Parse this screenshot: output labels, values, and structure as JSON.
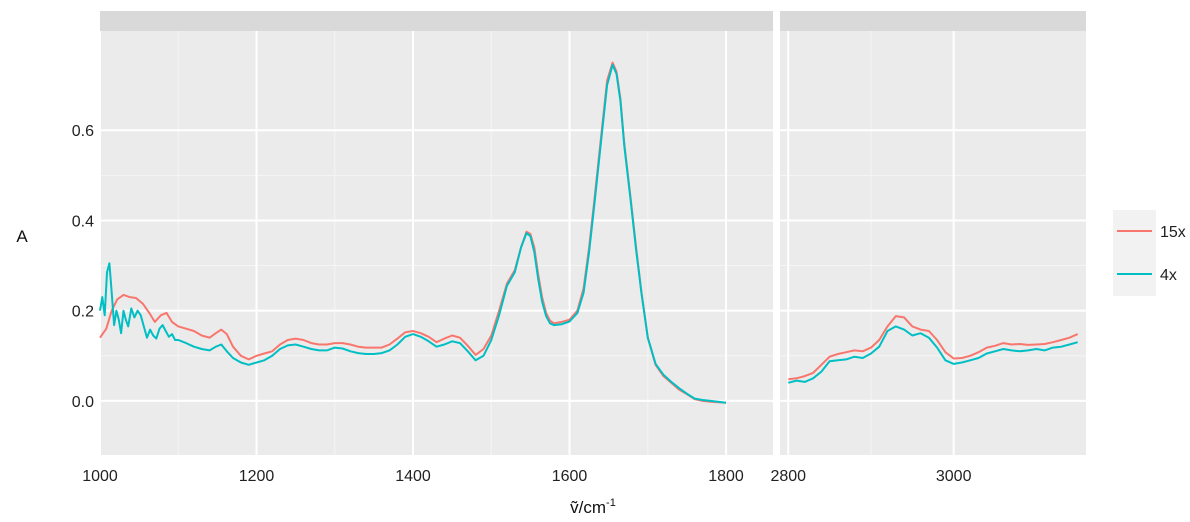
{
  "chart_data": {
    "type": "line",
    "xlabel": "ṽ/cm",
    "xlabel_sup": "-1",
    "ylabel": "A",
    "ylim": [
      -0.12,
      0.82
    ],
    "yticks": [
      0.0,
      0.2,
      0.4,
      0.6
    ],
    "ytick_labels": [
      "0.0",
      "0.2",
      "0.4",
      "0.6"
    ],
    "grid": true,
    "legend_position": "right",
    "panels": [
      {
        "xlim": [
          1000,
          1860
        ],
        "xticks": [
          1000,
          1200,
          1400,
          1600,
          1800
        ],
        "xtick_labels": [
          "1000",
          "1200",
          "1400",
          "1600",
          "1800"
        ]
      },
      {
        "xlim": [
          2790,
          3160
        ],
        "xticks": [
          2800,
          3000
        ],
        "xtick_labels": [
          "2800",
          "3000"
        ]
      }
    ],
    "series": [
      {
        "name": "15x",
        "color": "#F8766D",
        "panels": [
          [
            [
              1000,
              0.14
            ],
            [
              1008,
              0.16
            ],
            [
              1015,
              0.2
            ],
            [
              1022,
              0.225
            ],
            [
              1030,
              0.235
            ],
            [
              1038,
              0.23
            ],
            [
              1046,
              0.228
            ],
            [
              1055,
              0.215
            ],
            [
              1063,
              0.195
            ],
            [
              1070,
              0.175
            ],
            [
              1078,
              0.19
            ],
            [
              1085,
              0.195
            ],
            [
              1092,
              0.175
            ],
            [
              1100,
              0.165
            ],
            [
              1110,
              0.16
            ],
            [
              1120,
              0.155
            ],
            [
              1130,
              0.145
            ],
            [
              1140,
              0.14
            ],
            [
              1148,
              0.15
            ],
            [
              1155,
              0.158
            ],
            [
              1162,
              0.148
            ],
            [
              1170,
              0.12
            ],
            [
              1180,
              0.1
            ],
            [
              1190,
              0.092
            ],
            [
              1200,
              0.1
            ],
            [
              1210,
              0.105
            ],
            [
              1220,
              0.11
            ],
            [
              1230,
              0.125
            ],
            [
              1240,
              0.135
            ],
            [
              1250,
              0.138
            ],
            [
              1260,
              0.135
            ],
            [
              1270,
              0.128
            ],
            [
              1280,
              0.125
            ],
            [
              1290,
              0.125
            ],
            [
              1300,
              0.128
            ],
            [
              1310,
              0.128
            ],
            [
              1320,
              0.125
            ],
            [
              1330,
              0.12
            ],
            [
              1340,
              0.118
            ],
            [
              1350,
              0.118
            ],
            [
              1360,
              0.118
            ],
            [
              1370,
              0.125
            ],
            [
              1380,
              0.138
            ],
            [
              1390,
              0.152
            ],
            [
              1400,
              0.155
            ],
            [
              1410,
              0.15
            ],
            [
              1420,
              0.142
            ],
            [
              1430,
              0.13
            ],
            [
              1440,
              0.138
            ],
            [
              1450,
              0.145
            ],
            [
              1460,
              0.14
            ],
            [
              1470,
              0.122
            ],
            [
              1480,
              0.102
            ],
            [
              1490,
              0.115
            ],
            [
              1500,
              0.145
            ],
            [
              1510,
              0.2
            ],
            [
              1520,
              0.26
            ],
            [
              1530,
              0.29
            ],
            [
              1538,
              0.34
            ],
            [
              1545,
              0.375
            ],
            [
              1550,
              0.37
            ],
            [
              1555,
              0.34
            ],
            [
              1560,
              0.28
            ],
            [
              1565,
              0.23
            ],
            [
              1570,
              0.195
            ],
            [
              1575,
              0.178
            ],
            [
              1580,
              0.172
            ],
            [
              1590,
              0.175
            ],
            [
              1600,
              0.18
            ],
            [
              1610,
              0.2
            ],
            [
              1618,
              0.25
            ],
            [
              1625,
              0.34
            ],
            [
              1632,
              0.45
            ],
            [
              1640,
              0.58
            ],
            [
              1648,
              0.71
            ],
            [
              1655,
              0.75
            ],
            [
              1660,
              0.73
            ],
            [
              1665,
              0.67
            ],
            [
              1670,
              0.57
            ],
            [
              1678,
              0.45
            ],
            [
              1685,
              0.34
            ],
            [
              1692,
              0.24
            ],
            [
              1700,
              0.14
            ],
            [
              1710,
              0.08
            ],
            [
              1720,
              0.055
            ],
            [
              1730,
              0.04
            ],
            [
              1740,
              0.025
            ],
            [
              1750,
              0.015
            ],
            [
              1760,
              0.004
            ],
            [
              1770,
              0.0
            ],
            [
              1780,
              -0.002
            ],
            [
              1790,
              -0.003
            ],
            [
              1800,
              -0.004
            ]
          ],
          [
            [
              2800,
              0.048
            ],
            [
              2810,
              0.05
            ],
            [
              2820,
              0.055
            ],
            [
              2830,
              0.062
            ],
            [
              2840,
              0.08
            ],
            [
              2850,
              0.098
            ],
            [
              2860,
              0.104
            ],
            [
              2870,
              0.108
            ],
            [
              2880,
              0.112
            ],
            [
              2890,
              0.11
            ],
            [
              2900,
              0.118
            ],
            [
              2910,
              0.135
            ],
            [
              2920,
              0.165
            ],
            [
              2930,
              0.188
            ],
            [
              2940,
              0.185
            ],
            [
              2950,
              0.165
            ],
            [
              2960,
              0.158
            ],
            [
              2970,
              0.155
            ],
            [
              2980,
              0.135
            ],
            [
              2990,
              0.108
            ],
            [
              3000,
              0.094
            ],
            [
              3010,
              0.095
            ],
            [
              3020,
              0.1
            ],
            [
              3030,
              0.108
            ],
            [
              3040,
              0.118
            ],
            [
              3050,
              0.122
            ],
            [
              3060,
              0.128
            ],
            [
              3070,
              0.125
            ],
            [
              3080,
              0.126
            ],
            [
              3090,
              0.124
            ],
            [
              3100,
              0.125
            ],
            [
              3110,
              0.126
            ],
            [
              3120,
              0.13
            ],
            [
              3130,
              0.135
            ],
            [
              3140,
              0.14
            ],
            [
              3150,
              0.148
            ]
          ]
        ]
      },
      {
        "name": "4x",
        "color": "#00BFC4",
        "panels": [
          [
            [
              1000,
              0.2
            ],
            [
              1003,
              0.23
            ],
            [
              1006,
              0.19
            ],
            [
              1009,
              0.285
            ],
            [
              1012,
              0.305
            ],
            [
              1015,
              0.24
            ],
            [
              1018,
              0.168
            ],
            [
              1021,
              0.2
            ],
            [
              1024,
              0.18
            ],
            [
              1027,
              0.15
            ],
            [
              1030,
              0.2
            ],
            [
              1033,
              0.18
            ],
            [
              1036,
              0.165
            ],
            [
              1040,
              0.205
            ],
            [
              1044,
              0.185
            ],
            [
              1048,
              0.2
            ],
            [
              1052,
              0.19
            ],
            [
              1056,
              0.165
            ],
            [
              1060,
              0.14
            ],
            [
              1064,
              0.158
            ],
            [
              1068,
              0.145
            ],
            [
              1072,
              0.138
            ],
            [
              1076,
              0.16
            ],
            [
              1080,
              0.168
            ],
            [
              1084,
              0.155
            ],
            [
              1088,
              0.142
            ],
            [
              1092,
              0.148
            ],
            [
              1096,
              0.135
            ],
            [
              1100,
              0.135
            ],
            [
              1110,
              0.128
            ],
            [
              1120,
              0.12
            ],
            [
              1130,
              0.115
            ],
            [
              1140,
              0.112
            ],
            [
              1148,
              0.12
            ],
            [
              1155,
              0.125
            ],
            [
              1162,
              0.11
            ],
            [
              1170,
              0.095
            ],
            [
              1180,
              0.085
            ],
            [
              1190,
              0.08
            ],
            [
              1200,
              0.085
            ],
            [
              1210,
              0.09
            ],
            [
              1220,
              0.1
            ],
            [
              1230,
              0.115
            ],
            [
              1240,
              0.123
            ],
            [
              1250,
              0.125
            ],
            [
              1260,
              0.12
            ],
            [
              1270,
              0.115
            ],
            [
              1280,
              0.112
            ],
            [
              1290,
              0.112
            ],
            [
              1300,
              0.118
            ],
            [
              1310,
              0.116
            ],
            [
              1320,
              0.11
            ],
            [
              1330,
              0.106
            ],
            [
              1340,
              0.104
            ],
            [
              1350,
              0.104
            ],
            [
              1360,
              0.106
            ],
            [
              1370,
              0.112
            ],
            [
              1380,
              0.125
            ],
            [
              1390,
              0.142
            ],
            [
              1400,
              0.148
            ],
            [
              1410,
              0.142
            ],
            [
              1420,
              0.132
            ],
            [
              1430,
              0.12
            ],
            [
              1440,
              0.125
            ],
            [
              1450,
              0.132
            ],
            [
              1460,
              0.128
            ],
            [
              1470,
              0.11
            ],
            [
              1480,
              0.09
            ],
            [
              1490,
              0.1
            ],
            [
              1500,
              0.135
            ],
            [
              1510,
              0.19
            ],
            [
              1520,
              0.255
            ],
            [
              1530,
              0.285
            ],
            [
              1538,
              0.34
            ],
            [
              1545,
              0.372
            ],
            [
              1550,
              0.365
            ],
            [
              1555,
              0.33
            ],
            [
              1560,
              0.27
            ],
            [
              1565,
              0.22
            ],
            [
              1570,
              0.188
            ],
            [
              1575,
              0.172
            ],
            [
              1580,
              0.168
            ],
            [
              1590,
              0.17
            ],
            [
              1600,
              0.176
            ],
            [
              1610,
              0.195
            ],
            [
              1618,
              0.24
            ],
            [
              1625,
              0.33
            ],
            [
              1632,
              0.44
            ],
            [
              1640,
              0.57
            ],
            [
              1648,
              0.7
            ],
            [
              1655,
              0.745
            ],
            [
              1660,
              0.725
            ],
            [
              1665,
              0.665
            ],
            [
              1670,
              0.565
            ],
            [
              1678,
              0.445
            ],
            [
              1685,
              0.335
            ],
            [
              1692,
              0.238
            ],
            [
              1700,
              0.14
            ],
            [
              1710,
              0.082
            ],
            [
              1720,
              0.058
            ],
            [
              1730,
              0.042
            ],
            [
              1740,
              0.028
            ],
            [
              1750,
              0.016
            ],
            [
              1760,
              0.005
            ],
            [
              1770,
              0.002
            ],
            [
              1780,
              0.0
            ],
            [
              1790,
              -0.002
            ],
            [
              1800,
              -0.004
            ]
          ],
          [
            [
              2800,
              0.04
            ],
            [
              2810,
              0.045
            ],
            [
              2820,
              0.042
            ],
            [
              2830,
              0.05
            ],
            [
              2840,
              0.065
            ],
            [
              2850,
              0.088
            ],
            [
              2860,
              0.09
            ],
            [
              2870,
              0.092
            ],
            [
              2880,
              0.098
            ],
            [
              2890,
              0.095
            ],
            [
              2900,
              0.105
            ],
            [
              2910,
              0.12
            ],
            [
              2920,
              0.155
            ],
            [
              2930,
              0.165
            ],
            [
              2940,
              0.158
            ],
            [
              2950,
              0.145
            ],
            [
              2960,
              0.15
            ],
            [
              2970,
              0.14
            ],
            [
              2980,
              0.118
            ],
            [
              2990,
              0.09
            ],
            [
              3000,
              0.082
            ],
            [
              3010,
              0.085
            ],
            [
              3020,
              0.09
            ],
            [
              3030,
              0.095
            ],
            [
              3040,
              0.105
            ],
            [
              3050,
              0.11
            ],
            [
              3060,
              0.115
            ],
            [
              3070,
              0.112
            ],
            [
              3080,
              0.11
            ],
            [
              3090,
              0.112
            ],
            [
              3100,
              0.115
            ],
            [
              3110,
              0.112
            ],
            [
              3120,
              0.118
            ],
            [
              3130,
              0.12
            ],
            [
              3140,
              0.125
            ],
            [
              3150,
              0.13
            ]
          ]
        ]
      }
    ]
  }
}
